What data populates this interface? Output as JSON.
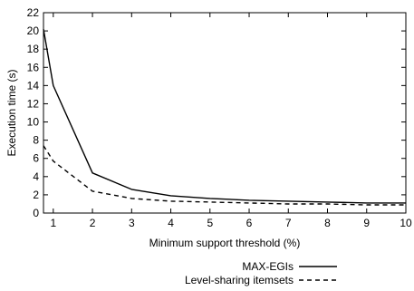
{
  "chart_data": {
    "type": "line",
    "xlabel": "Minimum support threshold (%)",
    "ylabel": "Execution time (s)",
    "xlim": [
      0.75,
      10
    ],
    "ylim": [
      0,
      22
    ],
    "xticks": [
      1,
      2,
      3,
      4,
      5,
      6,
      7,
      8,
      9,
      10
    ],
    "yticks": [
      0,
      2,
      4,
      6,
      8,
      10,
      12,
      14,
      16,
      18,
      20,
      22
    ],
    "grid": false,
    "legend_position": "bottom-center",
    "series": [
      {
        "name": "MAX-EGIs",
        "style": "solid",
        "x": [
          0.75,
          1,
          2,
          3,
          4,
          5,
          6,
          7,
          8,
          9,
          10
        ],
        "y": [
          20.2,
          14.0,
          4.4,
          2.6,
          1.9,
          1.6,
          1.4,
          1.3,
          1.2,
          1.1,
          1.1
        ]
      },
      {
        "name": "Level-sharing itemsets",
        "style": "dashed",
        "x": [
          0.75,
          1,
          2,
          3,
          4,
          5,
          6,
          7,
          8,
          9,
          10
        ],
        "y": [
          7.4,
          5.7,
          2.4,
          1.6,
          1.3,
          1.2,
          1.1,
          1.0,
          1.0,
          0.9,
          0.9
        ]
      }
    ]
  }
}
